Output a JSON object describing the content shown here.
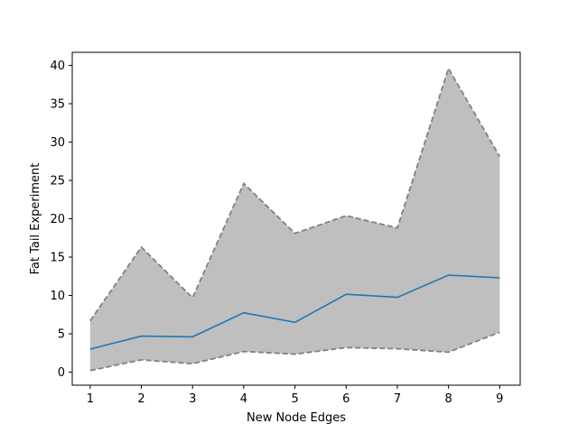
{
  "chart_data": {
    "type": "line",
    "title": "",
    "xlabel": "New Node Edges",
    "ylabel": "Fat Tail Experiment",
    "x": [
      1,
      2,
      3,
      4,
      5,
      6,
      7,
      8,
      9
    ],
    "xlim": [
      0.65,
      9.4
    ],
    "ylim": [
      -1.7,
      41.7
    ],
    "xticks": [
      1,
      2,
      3,
      4,
      5,
      6,
      7,
      8,
      9
    ],
    "yticks": [
      0,
      5,
      10,
      15,
      20,
      25,
      30,
      35,
      40
    ],
    "grid": false,
    "series": [
      {
        "role": "mean",
        "values": [
          3.0,
          4.7,
          4.6,
          7.75,
          6.5,
          10.15,
          9.75,
          12.65,
          12.3
        ],
        "color": "#1f77b4"
      },
      {
        "role": "upper",
        "values": [
          6.7,
          16.3,
          9.7,
          24.6,
          18.1,
          20.4,
          18.8,
          39.6,
          28.1
        ],
        "color": "#808080"
      },
      {
        "role": "lower",
        "values": [
          0.2,
          1.6,
          1.1,
          2.7,
          2.35,
          3.2,
          3.05,
          2.6,
          5.2
        ],
        "color": "#808080"
      }
    ],
    "band_color": "#bfbfbf"
  }
}
